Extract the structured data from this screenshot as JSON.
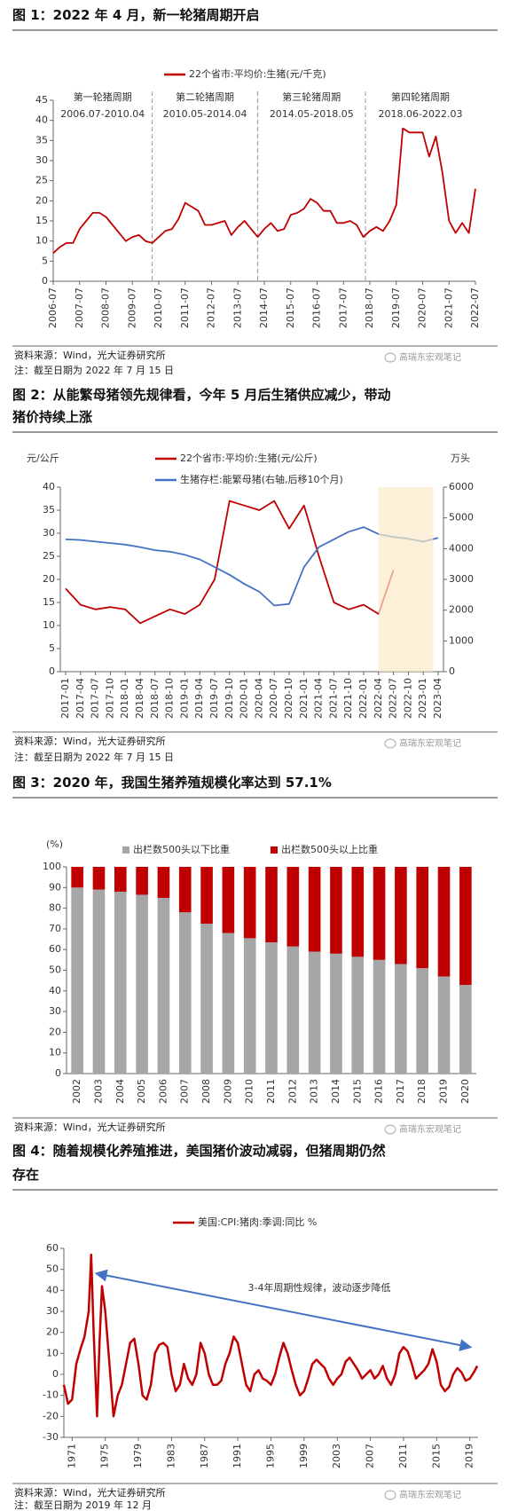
{
  "watermark": "高瑞东宏观笔记",
  "figures": [
    {
      "title": [
        "图 1：2022 年 4 月，新一轮猪周期开启"
      ],
      "source": "资料来源：Wind，光大证券研究所",
      "note": "注：截至日期为 2022 年 7 月 15 日"
    },
    {
      "title": [
        "图 2：从能繁母猪领先规律看，今年 5 月后生猪供应减少，带动",
        "猪价持续上涨"
      ],
      "source": "资料来源：Wind，光大证券研究所",
      "note": "注：截至日期为 2022 年 7 月 15 日"
    },
    {
      "title": [
        "图 3：2020 年，我国生猪养殖规模化率达到 57.1%"
      ],
      "source": "资料来源：Wind，光大证券研究所"
    },
    {
      "title": [
        "图 4：随着规模化养殖推进，美国猪价波动减弱，但猪周期仍然",
        "存在"
      ],
      "source": "资料来源：Wind，光大证券研究所",
      "note": "注：截至日期为 2019 年 12 月"
    }
  ],
  "chart_data": [
    {
      "type": "line",
      "legend": "top",
      "x": [
        "2006-07",
        "2006-10",
        "2007-01",
        "2007-04",
        "2007-07",
        "2007-10",
        "2008-01",
        "2008-04",
        "2008-07",
        "2008-10",
        "2009-01",
        "2009-04",
        "2009-07",
        "2009-10",
        "2010-01",
        "2010-04",
        "2010-07",
        "2010-10",
        "2011-01",
        "2011-04",
        "2011-07",
        "2011-10",
        "2012-01",
        "2012-04",
        "2012-07",
        "2012-10",
        "2013-01",
        "2013-04",
        "2013-07",
        "2013-10",
        "2014-01",
        "2014-04",
        "2014-07",
        "2014-10",
        "2015-01",
        "2015-04",
        "2015-07",
        "2015-10",
        "2016-01",
        "2016-04",
        "2016-07",
        "2016-10",
        "2017-01",
        "2017-04",
        "2017-07",
        "2017-10",
        "2018-01",
        "2018-04",
        "2018-07",
        "2018-10",
        "2019-01",
        "2019-04",
        "2019-07",
        "2019-10",
        "2020-01",
        "2020-04",
        "2020-07",
        "2020-10",
        "2021-01",
        "2021-04",
        "2021-07",
        "2021-10",
        "2022-01",
        "2022-04",
        "2022-07"
      ],
      "series": [
        {
          "name": "22个省市:平均价:生猪(元/千克)",
          "color": "#c00000",
          "values": [
            7,
            8.5,
            9.5,
            9.5,
            13,
            15,
            17,
            17,
            16,
            14,
            12,
            10,
            11,
            11.5,
            10,
            9.5,
            11,
            12.5,
            13,
            15.5,
            19.5,
            18.5,
            17.5,
            14,
            14,
            14.5,
            15,
            11.5,
            13.5,
            15,
            13,
            11,
            13,
            14.5,
            12.5,
            13,
            16.5,
            17,
            18,
            20.5,
            19.5,
            17.5,
            17.5,
            14.5,
            14.5,
            15,
            14,
            11,
            12.5,
            13.5,
            12.5,
            15,
            19,
            38,
            37,
            37,
            37,
            31,
            36,
            27,
            15,
            12,
            14.5,
            12,
            23
          ]
        }
      ],
      "xlim": [
        "2006-07",
        "2022-07"
      ],
      "xticks": [
        "2006-07",
        "2007-07",
        "2008-07",
        "2009-07",
        "2010-07",
        "2011-07",
        "2012-07",
        "2013-07",
        "2014-07",
        "2015-07",
        "2016-07",
        "2017-07",
        "2018-07",
        "2019-07",
        "2020-07",
        "2021-07",
        "2022-07"
      ],
      "ylim": [
        0,
        45
      ],
      "yticks": [
        0,
        5,
        10,
        15,
        20,
        25,
        30,
        35,
        40,
        45
      ],
      "dividers": [
        "2010-04",
        "2014-04",
        "2018-05"
      ],
      "periods": [
        {
          "name": "第一轮猪周期",
          "range": "2006.07-2010.04"
        },
        {
          "name": "第二轮猪周期",
          "range": "2010.05-2014.04"
        },
        {
          "name": "第三轮猪周期",
          "range": "2014.05-2018.05"
        },
        {
          "name": "第四轮猪周期",
          "range": "2018.06-2022.03"
        }
      ]
    },
    {
      "type": "line",
      "legend": "top",
      "ylabel": "元/公斤",
      "y2label": "万头",
      "x": [
        "2017-01",
        "2017-04",
        "2017-07",
        "2017-10",
        "2018-01",
        "2018-04",
        "2018-07",
        "2018-10",
        "2019-01",
        "2019-04",
        "2019-07",
        "2019-10",
        "2020-01",
        "2020-04",
        "2020-07",
        "2020-10",
        "2021-01",
        "2021-04",
        "2021-07",
        "2021-10",
        "2022-01",
        "2022-04",
        "2022-07",
        "2022-10",
        "2023-01",
        "2023-04"
      ],
      "series": [
        {
          "name": "22个省市:平均价:生猪(元/公斤)",
          "color": "#c00000",
          "values": [
            18,
            14.5,
            13.5,
            14,
            13.5,
            10.5,
            12,
            13.5,
            12.5,
            14.5,
            20,
            37,
            36,
            35,
            37,
            31,
            36,
            25,
            15,
            13.5,
            14.5,
            12.5,
            22,
            null,
            null,
            null
          ]
        },
        {
          "name": "生猪存栏:能繁母猪(右轴,后移10个月)",
          "color": "#4472c4",
          "axis": "y2",
          "values": [
            4300,
            4280,
            4230,
            4180,
            4130,
            4050,
            3950,
            3900,
            3800,
            3650,
            3400,
            3150,
            2850,
            2600,
            2150,
            2200,
            3400,
            4050,
            4300,
            4550,
            4700,
            4470,
            4380,
            4320,
            4230,
            4350
          ]
        }
      ],
      "xlim": [
        "2017-01",
        "2023-04"
      ],
      "xticks": [
        "2017-01",
        "2017-04",
        "2017-07",
        "2017-10",
        "2018-01",
        "2018-04",
        "2018-07",
        "2018-10",
        "2019-01",
        "2019-04",
        "2019-07",
        "2019-10",
        "2020-01",
        "2020-04",
        "2020-07",
        "2020-10",
        "2021-01",
        "2021-04",
        "2021-07",
        "2021-10",
        "2022-01",
        "2022-04",
        "2022-07",
        "2022-10",
        "2023-01",
        "2023-04"
      ],
      "ylim": [
        0,
        40
      ],
      "yticks": [
        0,
        5,
        10,
        15,
        20,
        25,
        30,
        35,
        40
      ],
      "y2lim": [
        0,
        6000
      ],
      "y2ticks": [
        0,
        1000,
        2000,
        3000,
        4000,
        5000,
        6000
      ],
      "highlight": [
        "2022-04",
        "2023-03"
      ]
    },
    {
      "type": "stacked-bar",
      "legend": "top",
      "ylabel": "(%)",
      "categories": [
        "2002",
        "2003",
        "2004",
        "2005",
        "2006",
        "2007",
        "2008",
        "2009",
        "2010",
        "2011",
        "2012",
        "2013",
        "2014",
        "2015",
        "2016",
        "2017",
        "2018",
        "2019",
        "2020"
      ],
      "series": [
        {
          "name": "出栏数500头以下比重",
          "color": "#a6a6a6",
          "values": [
            90,
            89,
            88,
            86.5,
            85,
            78,
            72.5,
            68,
            65.5,
            63.5,
            61.5,
            59,
            58,
            56.5,
            55,
            53,
            51,
            47,
            42.9
          ]
        },
        {
          "name": "出栏数500头以上比重",
          "color": "#c00000",
          "values": [
            10,
            11,
            12,
            13.5,
            15,
            22,
            27.5,
            32,
            34.5,
            36.5,
            38.5,
            41,
            42,
            43.5,
            45,
            47,
            49,
            53,
            57.1
          ]
        }
      ],
      "ylim": [
        0,
        100
      ],
      "yticks": [
        0,
        10,
        20,
        30,
        40,
        50,
        60,
        70,
        80,
        90,
        100
      ]
    },
    {
      "type": "line",
      "legend": "top",
      "x": [
        1970,
        1970.5,
        1971,
        1971.5,
        1972,
        1972.5,
        1973,
        1973.3,
        1973.6,
        1974,
        1974.3,
        1974.6,
        1975,
        1975.5,
        1976,
        1976.5,
        1977,
        1977.5,
        1978,
        1978.5,
        1979,
        1979.5,
        1980,
        1980.5,
        1981,
        1981.5,
        1982,
        1982.5,
        1983,
        1983.5,
        1984,
        1984.5,
        1985,
        1985.5,
        1986,
        1986.5,
        1987,
        1987.5,
        1988,
        1988.5,
        1989,
        1989.5,
        1990,
        1990.5,
        1991,
        1991.5,
        1992,
        1992.5,
        1993,
        1993.5,
        1994,
        1994.5,
        1995,
        1995.5,
        1996,
        1996.5,
        1997,
        1997.5,
        1998,
        1998.5,
        1999,
        1999.5,
        2000,
        2000.5,
        2001,
        2001.5,
        2002,
        2002.5,
        2003,
        2003.5,
        2004,
        2004.5,
        2005,
        2005.5,
        2006,
        2006.5,
        2007,
        2007.5,
        2008,
        2008.5,
        2009,
        2009.5,
        2010,
        2010.5,
        2011,
        2011.5,
        2012,
        2012.5,
        2013,
        2013.5,
        2014,
        2014.5,
        2015,
        2015.5,
        2016,
        2016.5,
        2017,
        2017.5,
        2018,
        2018.5,
        2019,
        2019.5,
        2019.9
      ],
      "series": [
        {
          "name": "美国:CPI:猪肉:季调:同比 %",
          "color": "#c00000",
          "values": [
            -5,
            -14,
            -12,
            5,
            12,
            18,
            30,
            57,
            20,
            -20,
            15,
            42,
            30,
            5,
            -20,
            -10,
            -5,
            5,
            15,
            17,
            5,
            -10,
            -12,
            -5,
            10,
            14,
            15,
            13,
            0,
            -8,
            -5,
            5,
            -2,
            -5,
            0,
            15,
            10,
            0,
            -5,
            -5,
            -3,
            5,
            10,
            18,
            15,
            5,
            -5,
            -8,
            0,
            2,
            -2,
            -3,
            -5,
            0,
            8,
            15,
            10,
            2,
            -5,
            -10,
            -8,
            -2,
            5,
            7,
            5,
            3,
            -2,
            -5,
            -2,
            0,
            6,
            8,
            5,
            2,
            -2,
            0,
            2,
            -2,
            0,
            4,
            -2,
            -5,
            0,
            10,
            13,
            11,
            5,
            -2,
            0,
            2,
            5,
            12,
            6,
            -5,
            -8,
            -6,
            0,
            3,
            1,
            -3,
            -2,
            1,
            4
          ]
        }
      ],
      "xlim": [
        1970,
        2020
      ],
      "xticks": [
        1971,
        1975,
        1979,
        1983,
        1987,
        1991,
        1995,
        1999,
        2003,
        2007,
        2011,
        2015,
        2019
      ],
      "ylim": [
        -30,
        60
      ],
      "yticks": [
        -30,
        -20,
        -10,
        0,
        10,
        20,
        30,
        40,
        50,
        60
      ],
      "annotation": "3-4年周期性规律，波动逐步降低",
      "arrow": {
        "from": [
          1974,
          48
        ],
        "to": [
          2019,
          13
        ],
        "color": "#4472c4"
      }
    }
  ]
}
